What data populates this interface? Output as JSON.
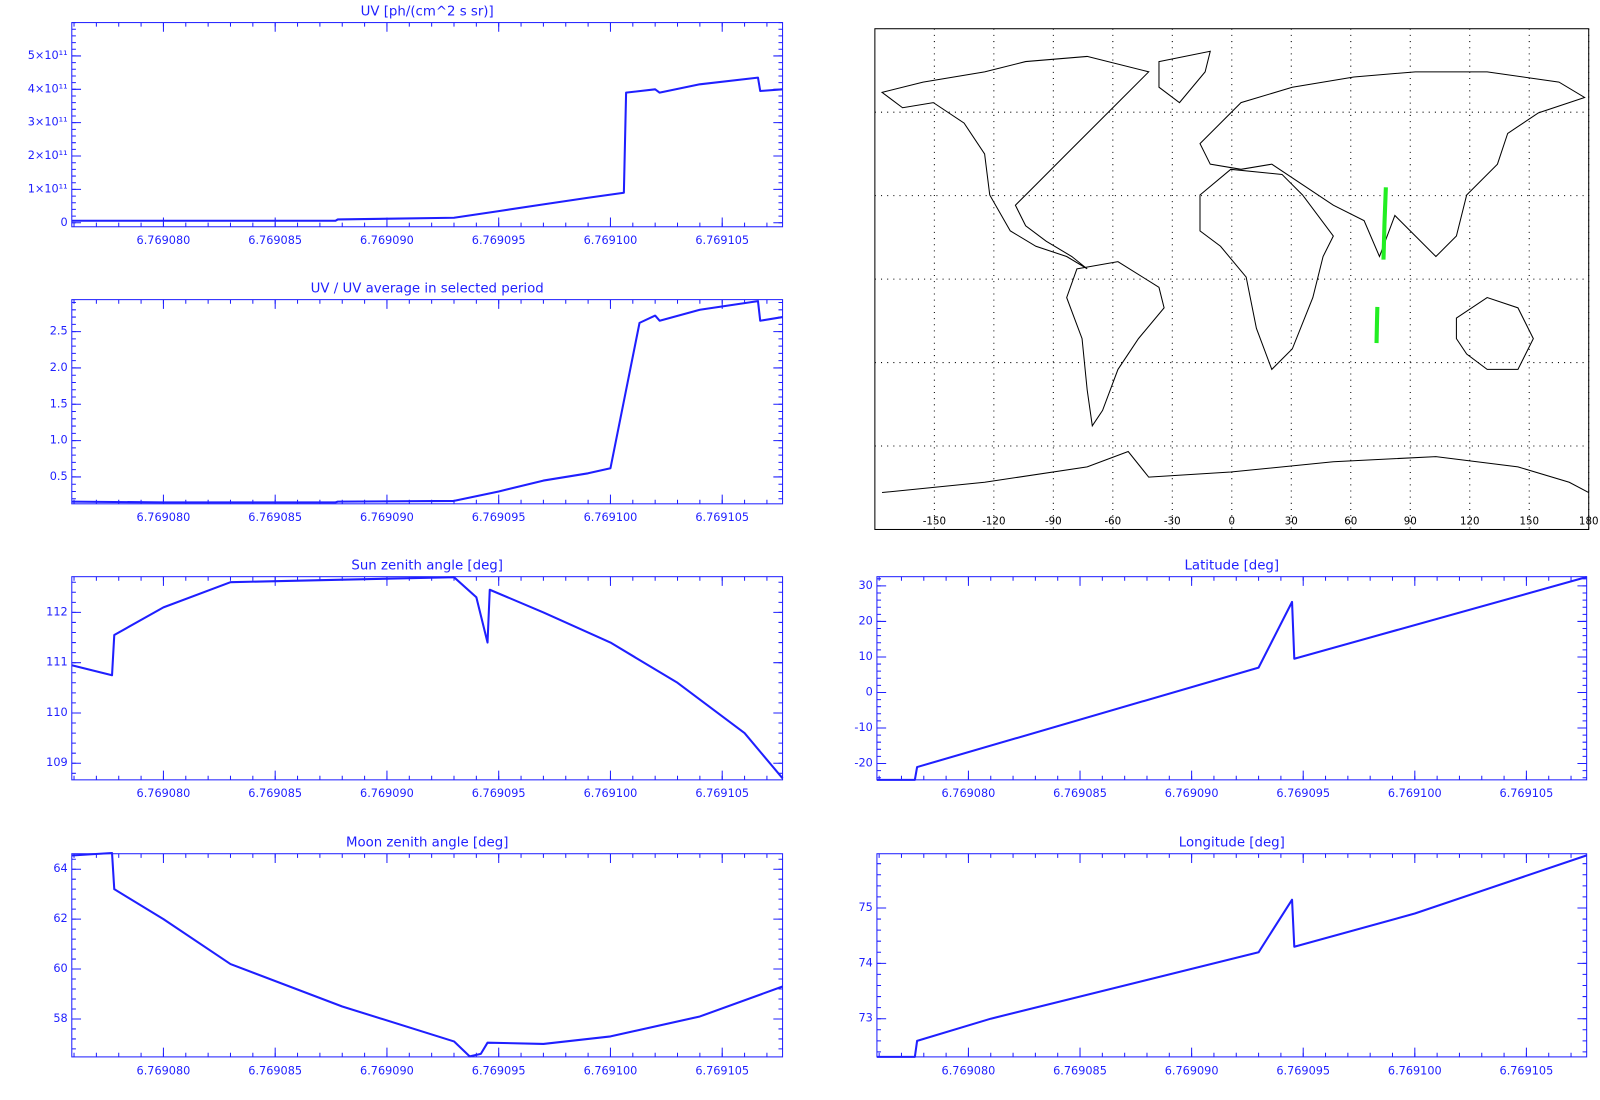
{
  "chart_data": [
    {
      "type": "line",
      "title": "UV [ph/(cm^2 s sr)]",
      "color": "#1f1fff",
      "xlim": [
        6.7690759,
        6.7691077
      ],
      "xticks": [
        {
          "value": 6.76908,
          "label": "6.769080"
        },
        {
          "value": 6.769085,
          "label": "6.769085"
        },
        {
          "value": 6.76909,
          "label": "6.769090"
        },
        {
          "value": 6.769095,
          "label": "6.769095"
        },
        {
          "value": 6.7691,
          "label": "6.769100"
        },
        {
          "value": 6.769105,
          "label": "6.769105"
        }
      ],
      "ylim": [
        -12000000000,
        600000000000
      ],
      "yticks": [
        0,
        {
          "value": 100000000000,
          "label": "1×10¹¹"
        },
        {
          "value": 200000000000,
          "label": "2×10¹¹"
        },
        {
          "value": 300000000000,
          "label": "3×10¹¹"
        },
        {
          "value": 400000000000,
          "label": "4×10¹¹"
        },
        {
          "value": 500000000000,
          "label": "5×10¹¹"
        }
      ],
      "x": [
        6.7690759,
        6.76908,
        6.7690877,
        6.7690878,
        6.769093,
        6.769095,
        6.769097,
        6.769099,
        6.7691006,
        6.7691007,
        6.769102,
        6.7691022,
        6.769104,
        6.7691066,
        6.7691067,
        6.7691077
      ],
      "values": [
        6000000000,
        6000000000,
        6000000000,
        10000000000,
        15000000000,
        35000000000,
        55000000000,
        75000000000,
        90000000000,
        390000000000,
        400000000000,
        390000000000,
        415000000000,
        435000000000,
        395000000000,
        400000000000
      ]
    },
    {
      "type": "line",
      "title": "UV / UV average in selected period",
      "color": "#1f1fff",
      "xlim": [
        6.7690759,
        6.7691077
      ],
      "xticks": [
        {
          "value": 6.76908,
          "label": "6.769080"
        },
        {
          "value": 6.769085,
          "label": "6.769085"
        },
        {
          "value": 6.76909,
          "label": "6.769090"
        },
        {
          "value": 6.769095,
          "label": "6.769095"
        },
        {
          "value": 6.7691,
          "label": "6.769100"
        },
        {
          "value": 6.769105,
          "label": "6.769105"
        }
      ],
      "ylim": [
        0.13,
        2.94
      ],
      "yticks": [
        0.5,
        {
          "value": 1,
          "label": "1.0"
        },
        1.5,
        {
          "value": 2,
          "label": "2.0"
        },
        2.5
      ],
      "x": [
        6.7690759,
        6.76908,
        6.7690877,
        6.7690878,
        6.769093,
        6.769095,
        6.769097,
        6.769099,
        6.7691,
        6.7691013,
        6.769102,
        6.7691022,
        6.769104,
        6.7691066,
        6.7691067,
        6.7691077
      ],
      "values": [
        0.16,
        0.15,
        0.15,
        0.16,
        0.17,
        0.3,
        0.45,
        0.55,
        0.62,
        2.62,
        2.72,
        2.65,
        2.8,
        2.92,
        2.65,
        2.7
      ]
    },
    {
      "type": "line",
      "title": "Sun zenith angle [deg]",
      "color": "#1f1fff",
      "xlim": [
        6.7690759,
        6.7691077
      ],
      "xticks": [
        {
          "value": 6.76908,
          "label": "6.769080"
        },
        {
          "value": 6.769085,
          "label": "6.769085"
        },
        {
          "value": 6.76909,
          "label": "6.769090"
        },
        {
          "value": 6.769095,
          "label": "6.769095"
        },
        {
          "value": 6.7691,
          "label": "6.769100"
        },
        {
          "value": 6.769105,
          "label": "6.769105"
        }
      ],
      "ylim": [
        108.67,
        112.71
      ],
      "yticks": [
        109,
        110,
        111,
        112
      ],
      "x": [
        6.7690759,
        6.7690777,
        6.7690778,
        6.76908,
        6.769083,
        6.769088,
        6.769093,
        6.769094,
        6.7690945,
        6.7690946,
        6.769097,
        6.7691,
        6.769103,
        6.769106,
        6.7691077
      ],
      "values": [
        110.95,
        110.75,
        111.55,
        112.1,
        112.6,
        112.65,
        112.7,
        112.3,
        111.4,
        112.45,
        112.0,
        111.4,
        110.6,
        109.6,
        108.7
      ]
    },
    {
      "type": "line",
      "title": "Moon zenith angle [deg]",
      "color": "#1f1fff",
      "xlim": [
        6.7690759,
        6.7691077
      ],
      "xticks": [
        {
          "value": 6.76908,
          "label": "6.769080"
        },
        {
          "value": 6.769085,
          "label": "6.769085"
        },
        {
          "value": 6.76909,
          "label": "6.769090"
        },
        {
          "value": 6.769095,
          "label": "6.769095"
        },
        {
          "value": 6.7691,
          "label": "6.769100"
        },
        {
          "value": 6.769105,
          "label": "6.769105"
        }
      ],
      "ylim": [
        56.48,
        64.62
      ],
      "yticks": [
        58,
        60,
        62,
        64
      ],
      "x": [
        6.7690759,
        6.7690777,
        6.7690778,
        6.76908,
        6.769083,
        6.769088,
        6.769093,
        6.7690937,
        6.7690942,
        6.7690945,
        6.769097,
        6.7691,
        6.769104,
        6.7691077
      ],
      "values": [
        64.55,
        64.65,
        63.2,
        62.0,
        60.2,
        58.5,
        57.1,
        56.5,
        56.6,
        57.05,
        57.0,
        57.3,
        58.1,
        59.3
      ]
    },
    {
      "type": "map",
      "color": "#22ee22",
      "xlim": [
        -180,
        180
      ],
      "ylim": [
        -90,
        90
      ],
      "xticks": [
        -150,
        -120,
        -90,
        -60,
        -30,
        0,
        30,
        60,
        90,
        120,
        150,
        180
      ],
      "grid_lats": [
        -60,
        -30,
        0,
        30,
        60
      ],
      "x": [
        73.0,
        73.2,
        73.4,
        null,
        76.5,
        77.0,
        77.7
      ],
      "values": [
        -23,
        -16,
        -10,
        null,
        7,
        20,
        33
      ]
    },
    {
      "type": "line",
      "title": "Latitude [deg]",
      "color": "#1f1fff",
      "xlim": [
        6.7690759,
        6.7691077
      ],
      "xticks": [
        {
          "value": 6.76908,
          "label": "6.769080"
        },
        {
          "value": 6.769085,
          "label": "6.769085"
        },
        {
          "value": 6.76909,
          "label": "6.769090"
        },
        {
          "value": 6.769095,
          "label": "6.769095"
        },
        {
          "value": 6.7691,
          "label": "6.769100"
        },
        {
          "value": 6.769105,
          "label": "6.769105"
        }
      ],
      "ylim": [
        -24.6,
        32.6
      ],
      "yticks": [
        -20,
        -10,
        0,
        10,
        20,
        30
      ],
      "x": [
        6.7690759,
        6.7690776,
        6.7690777,
        6.769093,
        6.7690945,
        6.7690946,
        6.7691077
      ],
      "values": [
        -24.6,
        -24.6,
        -21,
        7,
        25.5,
        9.5,
        32.5
      ]
    },
    {
      "type": "line",
      "title": "Longitude [deg]",
      "color": "#1f1fff",
      "xlim": [
        6.7690759,
        6.7691077
      ],
      "xticks": [
        {
          "value": 6.76908,
          "label": "6.769080"
        },
        {
          "value": 6.769085,
          "label": "6.769085"
        },
        {
          "value": 6.76909,
          "label": "6.769090"
        },
        {
          "value": 6.769095,
          "label": "6.769095"
        },
        {
          "value": 6.7691,
          "label": "6.769100"
        },
        {
          "value": 6.769105,
          "label": "6.769105"
        }
      ],
      "ylim": [
        72.31,
        75.98
      ],
      "yticks": [
        73,
        74,
        75
      ],
      "x": [
        6.7690759,
        6.7690776,
        6.7690777,
        6.769081,
        6.769093,
        6.7690945,
        6.7690946,
        6.7691,
        6.7691077
      ],
      "values": [
        72.31,
        72.31,
        72.6,
        73.0,
        74.2,
        75.15,
        74.3,
        74.9,
        75.95
      ]
    }
  ]
}
